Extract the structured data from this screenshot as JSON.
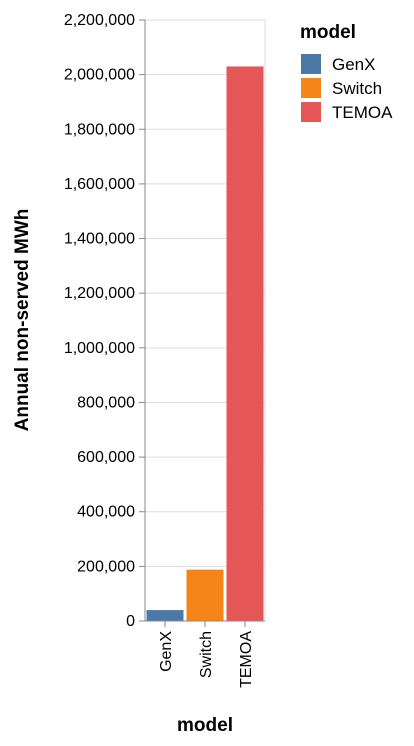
{
  "chart_data": {
    "type": "bar",
    "categories": [
      "GenX",
      "Switch",
      "TEMOA"
    ],
    "values": [
      40000,
      188000,
      2030000
    ],
    "colors": [
      "#4c78a8",
      "#f58518",
      "#e45756"
    ],
    "xlabel": "model",
    "ylabel": "Annual non-served MWh",
    "ylim": [
      0,
      2200000
    ],
    "yticks": [
      0,
      200000,
      400000,
      600000,
      800000,
      1000000,
      1200000,
      1400000,
      1600000,
      1800000,
      2000000,
      2200000
    ],
    "ytick_labels": [
      "0",
      "200,000",
      "400,000",
      "600,000",
      "800,000",
      "1,000,000",
      "1,200,000",
      "1,400,000",
      "1,600,000",
      "1,800,000",
      "2,000,000",
      "2,200,000"
    ],
    "grid": true,
    "legend": {
      "title": "model",
      "position": "top-right",
      "entries": [
        "GenX",
        "Switch",
        "TEMOA"
      ]
    }
  }
}
